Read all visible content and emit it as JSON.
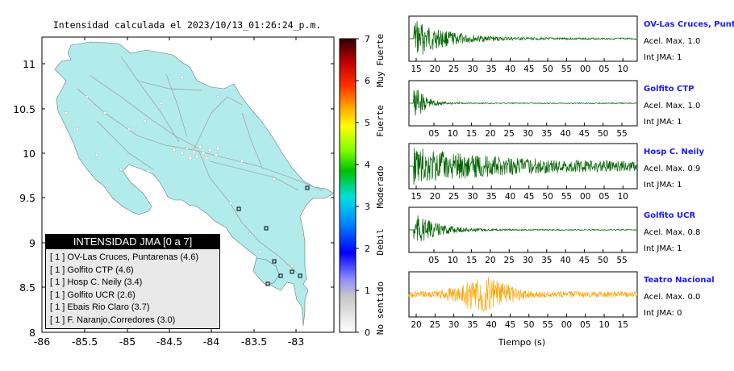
{
  "map": {
    "title": "Intensidad calculada el 2023/10/13_01:26:24_p.m.",
    "lat_ticks": [
      "11",
      "10.5",
      "10",
      "9.5",
      "9",
      "8.5",
      "8"
    ],
    "lon_ticks": [
      "-86",
      "-85.5",
      "-85",
      "-84.5",
      "-84",
      "-83.5",
      "-83"
    ],
    "land_color": "#b1ebec",
    "ocean_color": "#ffffff"
  },
  "colorbar": {
    "ticks": [
      "0",
      "1",
      "2",
      "3",
      "4",
      "5",
      "6",
      "7"
    ],
    "labels": [
      "No sentido",
      "Debil",
      "Moderado",
      "Fuerte",
      "Muy Fuerte"
    ]
  },
  "legend": {
    "title": "INTENSIDAD JMA [0 a 7]",
    "items": [
      "[ 1 ]  OV-Las Cruces, Puntarenas (4.6)",
      "[ 1 ]  Golfito CTP (4.6)",
      "[ 1 ]  Hosp C. Neily (3.4)",
      "[ 1 ]  Golfito UCR (2.6)",
      "[ 1 ]  Ebais Rio Claro (3.7)",
      "[ 1 ]  F. Naranjo,Corredores (3.0)"
    ]
  },
  "traces": [
    {
      "name": "OV-Las Cruces, Puntar",
      "acel": "Acel. Max. 1.0",
      "jma": "Int JMA: 1",
      "ticks": [
        "15",
        "20",
        "25",
        "30",
        "35",
        "40",
        "45",
        "50",
        "55",
        "00",
        "05",
        "10"
      ],
      "color": "#006400"
    },
    {
      "name": "Golfito CTP",
      "acel": "Acel. Max. 1.0",
      "jma": "Int JMA: 1",
      "ticks": [
        "05",
        "10",
        "15",
        "20",
        "25",
        "30",
        "35",
        "40",
        "45",
        "50",
        "55"
      ],
      "color": "#006400"
    },
    {
      "name": "Hosp C. Neily",
      "acel": "Acel. Max. 0.9",
      "jma": "Int JMA: 1",
      "ticks": [
        "15",
        "20",
        "25",
        "30",
        "35",
        "40",
        "45",
        "50",
        "55",
        "00",
        "05",
        "10"
      ],
      "color": "#006400"
    },
    {
      "name": "Golfito UCR",
      "acel": "Acel. Max. 0.8",
      "jma": "Int JMA: 1",
      "ticks": [
        "05",
        "10",
        "15",
        "20",
        "25",
        "30",
        "35",
        "40",
        "45",
        "50",
        "55"
      ],
      "color": "#006400"
    },
    {
      "name": "Teatro Nacional",
      "acel": "Acel. Max. 0.0",
      "jma": "Int JMA: 0",
      "ticks": [
        "20",
        "25",
        "30",
        "35",
        "40",
        "45",
        "50",
        "55",
        "00",
        "05",
        "10",
        "15"
      ],
      "color": "#ffa500"
    }
  ],
  "traces_xlabel": "Tiempo (s)",
  "chart_data": {
    "type": "map",
    "title": "Intensidad calculada el 2023/10/13_01:26:24_p.m.",
    "ylabel": "",
    "xlabel": "",
    "ylim": [
      8,
      11.2
    ],
    "xlim": [
      -86,
      -82.5
    ],
    "stations": [
      {
        "name": "OV-Las Cruces, Puntarenas",
        "intensity": 4.6,
        "lon": -82.96,
        "lat": 8.79
      },
      {
        "name": "Golfito CTP",
        "intensity": 4.6,
        "lon": -83.16,
        "lat": 8.64
      },
      {
        "name": "Hosp C. Neily",
        "intensity": 3.4,
        "lon": -82.95,
        "lat": 8.64
      },
      {
        "name": "Golfito UCR",
        "intensity": 2.6,
        "lon": -83.06,
        "lat": 8.62
      },
      {
        "name": "Ebais Rio Claro",
        "intensity": 3.7,
        "lon": -83.02,
        "lat": 8.68
      },
      {
        "name": "F. Naranjo,Corredores",
        "intensity": 3.0,
        "lon": -82.89,
        "lat": 8.57
      }
    ]
  }
}
